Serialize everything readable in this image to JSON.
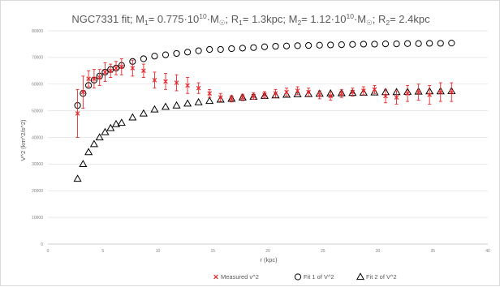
{
  "chart_data": {
    "type": "scatter",
    "title_parts": {
      "prefix": "NGC7331 fit; M",
      "sub1": "1",
      "m1_value": "= 0.775·10",
      "exp": "10",
      "m1_unit": "·M",
      "sun": "☉",
      "r1_prefix": "; R",
      "r1_value": "= 1.3kpc; M",
      "sub2": "2",
      "m2_value": "= 1.12·10",
      "m2_unit": "·M",
      "r2_prefix": "; R",
      "r2_value": "= 2.4kpc"
    },
    "xlabel": "r (kpc)",
    "ylabel": "V^2 (km^2/s^2)",
    "xlim": [
      0,
      40
    ],
    "ylim": [
      0,
      80000
    ],
    "xticks": [
      0,
      5,
      10,
      15,
      20,
      25,
      30,
      35,
      40
    ],
    "yticks": [
      0,
      10000,
      20000,
      30000,
      40000,
      50000,
      60000,
      70000,
      80000
    ],
    "xtick_labels": [
      "0",
      "5",
      "10",
      "15",
      "20",
      "25",
      "30",
      "35",
      "40"
    ],
    "ytick_labels": [
      "0",
      "10000",
      "20000",
      "30000",
      "40000",
      "50000",
      "60000",
      "70000",
      "80000"
    ],
    "grid": "horizontal",
    "legend_position": "bottom",
    "series": [
      {
        "name": "Measured v^2",
        "marker": "x",
        "color": "#e8272b",
        "x": [
          2.7,
          3.2,
          3.7,
          4.2,
          4.7,
          5.2,
          5.7,
          6.2,
          6.7,
          7.7,
          8.7,
          9.7,
          10.7,
          11.7,
          12.7,
          13.7,
          14.7,
          15.7,
          16.7,
          17.7,
          18.7,
          19.7,
          20.7,
          21.7,
          22.7,
          23.7,
          24.7,
          25.7,
          26.7,
          27.7,
          28.7,
          29.7,
          30.7,
          31.7,
          32.7,
          33.7,
          34.7,
          35.7,
          36.7
        ],
        "y": [
          49000,
          57000,
          62000,
          62000,
          62500,
          64500,
          65000,
          66000,
          66500,
          66000,
          65000,
          61500,
          61000,
          60500,
          59500,
          58500,
          56500,
          55000,
          54500,
          55000,
          55500,
          56000,
          56500,
          57000,
          57500,
          57000,
          56000,
          55500,
          56500,
          57000,
          57500,
          58000,
          55500,
          55000,
          56500,
          57000,
          56000,
          57000,
          57000
        ],
        "err": [
          9000,
          6000,
          3000,
          3500,
          3000,
          3500,
          2500,
          2500,
          3000,
          3000,
          2500,
          3000,
          3000,
          3000,
          3000,
          2000,
          1500,
          1500,
          1200,
          1200,
          1200,
          1200,
          1500,
          1500,
          1500,
          1500,
          1500,
          1500,
          1500,
          1500,
          1500,
          1500,
          2500,
          2500,
          3000,
          3000,
          3500,
          3500,
          3500
        ]
      },
      {
        "name": "Fit 1 of V^2",
        "marker": "circle",
        "color": "#000000",
        "x": [
          2.7,
          3.2,
          3.7,
          4.2,
          4.7,
          5.2,
          5.7,
          6.2,
          6.7,
          7.7,
          8.7,
          9.7,
          10.7,
          11.7,
          12.7,
          13.7,
          14.7,
          15.7,
          16.7,
          17.7,
          18.7,
          19.7,
          20.7,
          21.7,
          22.7,
          23.7,
          24.7,
          25.7,
          26.7,
          27.7,
          28.7,
          29.7,
          30.7,
          31.7,
          32.7,
          33.7,
          34.7,
          35.7,
          36.7
        ],
        "y": [
          52000,
          56500,
          59500,
          61500,
          63000,
          64500,
          65500,
          66000,
          67000,
          68500,
          69500,
          70500,
          71000,
          71500,
          72000,
          72500,
          73000,
          73000,
          73300,
          73500,
          73700,
          74000,
          74200,
          74300,
          74400,
          74500,
          74600,
          74700,
          74800,
          74900,
          75000,
          75000,
          75100,
          75100,
          75200,
          75200,
          75300,
          75300,
          75400
        ]
      },
      {
        "name": "Fit 2 of V^2",
        "marker": "triangle",
        "color": "#000000",
        "x": [
          2.7,
          3.2,
          3.7,
          4.2,
          4.7,
          5.2,
          5.7,
          6.2,
          6.7,
          7.7,
          8.7,
          9.7,
          10.7,
          11.7,
          12.7,
          13.7,
          14.7,
          15.7,
          16.7,
          17.7,
          18.7,
          19.7,
          20.7,
          21.7,
          22.7,
          23.7,
          24.7,
          25.7,
          26.7,
          27.7,
          28.7,
          29.7,
          30.7,
          31.7,
          32.7,
          33.7,
          34.7,
          35.7,
          36.7
        ],
        "y": [
          24500,
          30000,
          34500,
          37500,
          40000,
          42000,
          43500,
          45000,
          45500,
          47500,
          49000,
          50500,
          51500,
          52000,
          52700,
          53200,
          53700,
          54200,
          54500,
          55000,
          55300,
          55600,
          55800,
          56000,
          56200,
          56300,
          56400,
          56500,
          56600,
          56700,
          56800,
          56900,
          57000,
          57000,
          57100,
          57200,
          57300,
          57300,
          57400
        ]
      }
    ]
  }
}
